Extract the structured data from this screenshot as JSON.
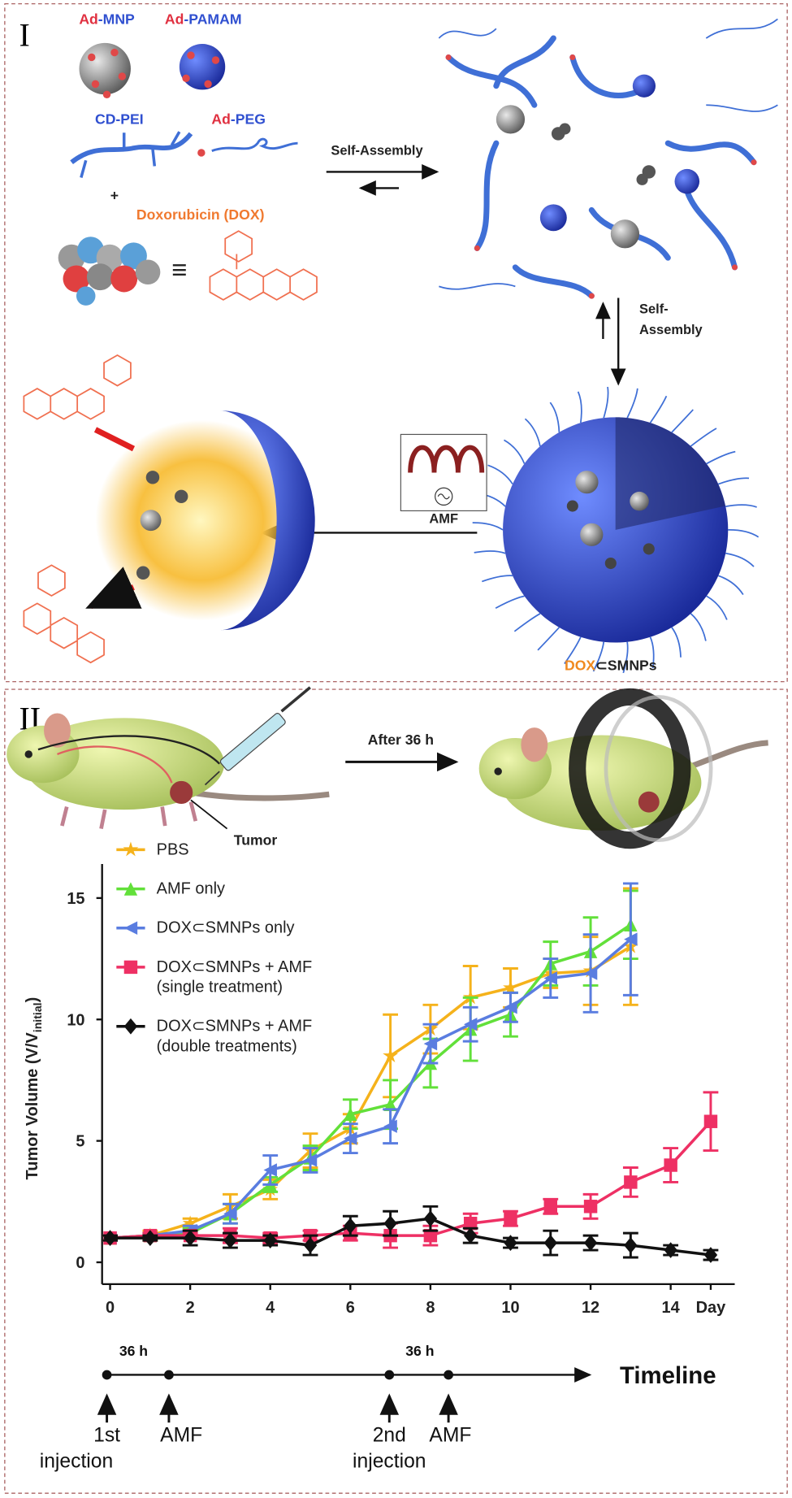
{
  "panel_1": {
    "label": "I",
    "ad_mnp": {
      "ad": "Ad",
      "rest": "-MNP"
    },
    "ad_pamam": {
      "ad": "Ad",
      "rest": "-PAMAM"
    },
    "cd_pei": "CD-PEI",
    "ad_peg": {
      "ad": "Ad",
      "rest": "-PEG"
    },
    "plus": "+",
    "dox": "Doxorubicin (DOX)",
    "equiv": "≡",
    "self_assembly_1": "Self-Assembly",
    "self_assembly_2": [
      "Self-",
      "Assembly"
    ],
    "amf": "AMF",
    "product": {
      "dox": "DOX",
      "rest": "⊂SMNPs"
    }
  },
  "panel_2": {
    "label": "II",
    "after": "After 36 h",
    "tumor": "Tumor",
    "timeline": {
      "title": "Timeline",
      "intervals": [
        "36 h",
        "36 h"
      ],
      "events": [
        [
          "1st",
          "injection"
        ],
        [
          "AMF"
        ],
        [
          "2nd",
          "injection"
        ],
        [
          "AMF"
        ]
      ]
    }
  },
  "chart_data": {
    "type": "line",
    "y_label": {
      "main": "Tumor Volume (V/V",
      "sub": "initial",
      "end": ")"
    },
    "x": [
      0,
      1,
      2,
      3,
      4,
      5,
      6,
      7,
      8,
      9,
      10,
      11,
      12,
      13,
      14,
      15
    ],
    "xlim": [
      -0.2,
      15.6
    ],
    "ylim": [
      -0.9,
      16.4
    ],
    "xticks": [
      0,
      2,
      4,
      6,
      8,
      10,
      12,
      14,
      {
        "value": 15,
        "label": "Day"
      }
    ],
    "yticks": [
      0,
      5,
      10,
      15
    ],
    "grid": false,
    "legend": "upper left",
    "series": [
      {
        "name": "PBS",
        "color": "#f5b21b",
        "marker": "star",
        "values": [
          1.0,
          1.1,
          1.6,
          2.3,
          3.0,
          4.6,
          5.5,
          8.5,
          9.6,
          10.9,
          11.3,
          11.9,
          12.0,
          13.0,
          null,
          null
        ],
        "errors": [
          0.1,
          0.2,
          0.2,
          0.5,
          0.4,
          0.7,
          0.6,
          1.7,
          1.0,
          1.3,
          0.8,
          0.6,
          1.4,
          2.4,
          null,
          null
        ]
      },
      {
        "name": "AMF only",
        "color": "#62e03a",
        "marker": "triangle",
        "values": [
          1.0,
          1.1,
          1.2,
          2.0,
          3.2,
          4.3,
          6.1,
          6.5,
          8.2,
          9.6,
          10.2,
          12.3,
          12.8,
          13.9,
          null,
          null
        ],
        "errors": [
          0.1,
          0.1,
          0.2,
          0.4,
          0.3,
          0.5,
          0.6,
          1.0,
          1.0,
          1.3,
          0.9,
          0.9,
          1.4,
          1.4,
          null,
          null
        ]
      },
      {
        "name": "DOX⊂SMNPs only",
        "color": "#5a7de0",
        "marker": "tri-left",
        "values": [
          1.0,
          1.1,
          1.3,
          2.0,
          3.8,
          4.2,
          5.1,
          5.6,
          9.0,
          9.8,
          10.5,
          11.7,
          11.9,
          13.3,
          null,
          null
        ],
        "errors": [
          0.1,
          0.1,
          0.2,
          0.4,
          0.6,
          0.5,
          0.6,
          0.7,
          0.8,
          0.7,
          0.6,
          0.8,
          1.6,
          2.3,
          null,
          null
        ]
      },
      {
        "name": "DOX⊂SMNPs + AMF\n(single treatment)",
        "color": "#ee3064",
        "marker": "square",
        "values": [
          1.0,
          1.1,
          1.1,
          1.1,
          1.0,
          1.1,
          1.2,
          1.1,
          1.1,
          1.6,
          1.8,
          2.3,
          2.3,
          3.3,
          4.0,
          5.8
        ],
        "errors": [
          0.1,
          0.1,
          0.1,
          0.3,
          0.2,
          0.2,
          0.3,
          0.5,
          0.4,
          0.4,
          0.3,
          0.3,
          0.5,
          0.6,
          0.7,
          1.2
        ]
      },
      {
        "name": "DOX⊂SMNPs + AMF\n(double treatments)",
        "color": "#111111",
        "marker": "diamond",
        "values": [
          1.0,
          1.0,
          1.0,
          0.9,
          0.9,
          0.7,
          1.5,
          1.6,
          1.8,
          1.1,
          0.8,
          0.8,
          0.8,
          0.7,
          0.5,
          0.3
        ],
        "errors": [
          0.1,
          0.1,
          0.3,
          0.3,
          0.2,
          0.4,
          0.4,
          0.5,
          0.5,
          0.3,
          0.2,
          0.5,
          0.3,
          0.5,
          0.2,
          0.2
        ]
      }
    ]
  }
}
